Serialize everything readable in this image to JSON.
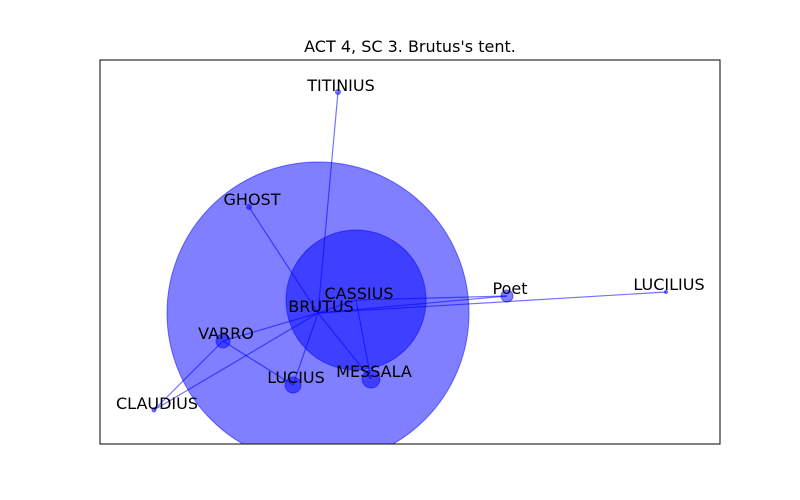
{
  "title": "ACT 4, SC 3. Brutus's tent.",
  "colors": {
    "node": "#0000ff",
    "edge": "#0000ff",
    "frame": "#000000"
  },
  "chart_data": {
    "type": "network",
    "title": "ACT 4, SC 3. Brutus's tent.",
    "nodes": [
      {
        "id": "BRUTUS",
        "label": "BRUTUS",
        "weight": 152
      },
      {
        "id": "CASSIUS",
        "label": "CASSIUS",
        "weight": 70
      },
      {
        "id": "TITINIUS",
        "label": "TITINIUS",
        "weight": 1
      },
      {
        "id": "GHOST",
        "label": "GHOST",
        "weight": 1.5
      },
      {
        "id": "Poet",
        "label": "Poet",
        "weight": 6
      },
      {
        "id": "LUCILIUS",
        "label": "LUCILIUS",
        "weight": 0.5
      },
      {
        "id": "VARRO",
        "label": "VARRO",
        "weight": 7
      },
      {
        "id": "CLAUDIUS",
        "label": "CLAUDIUS",
        "weight": 0.7
      },
      {
        "id": "LUCIUS",
        "label": "LUCIUS",
        "weight": 8
      },
      {
        "id": "MESSALA",
        "label": "MESSALA",
        "weight": 9
      }
    ],
    "edges": [
      [
        "BRUTUS",
        "CASSIUS"
      ],
      [
        "BRUTUS",
        "TITINIUS"
      ],
      [
        "BRUTUS",
        "GHOST"
      ],
      [
        "BRUTUS",
        "Poet"
      ],
      [
        "BRUTUS",
        "LUCILIUS"
      ],
      [
        "BRUTUS",
        "VARRO"
      ],
      [
        "BRUTUS",
        "CLAUDIUS"
      ],
      [
        "BRUTUS",
        "LUCIUS"
      ],
      [
        "BRUTUS",
        "MESSALA"
      ],
      [
        "CASSIUS",
        "Poet"
      ],
      [
        "CASSIUS",
        "MESSALA"
      ],
      [
        "VARRO",
        "CLAUDIUS"
      ],
      [
        "VARRO",
        "LUCIUS"
      ]
    ]
  }
}
